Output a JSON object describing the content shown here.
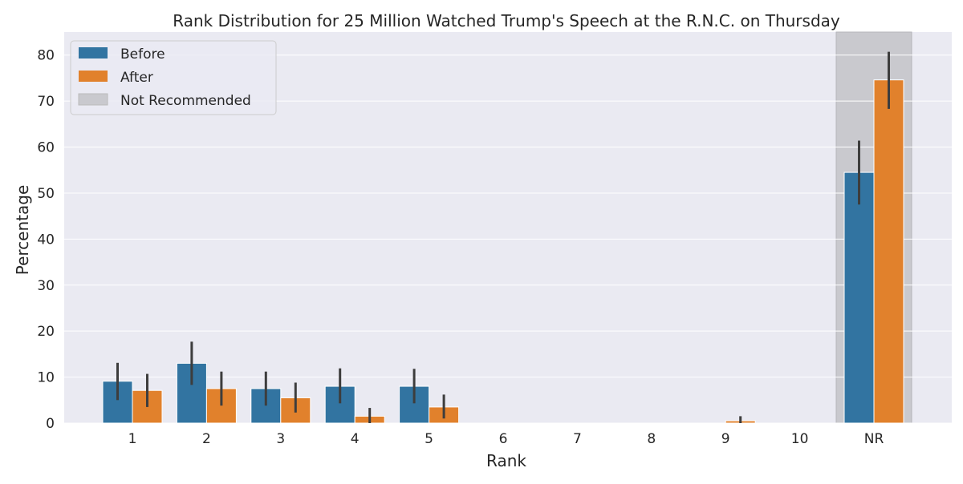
{
  "chart_data": {
    "type": "bar",
    "title": "Rank Distribution for 25 Million Watched Trump's Speech at the R.N.C. on Thursday",
    "xlabel": "Rank",
    "ylabel": "Percentage",
    "categories": [
      "1",
      "2",
      "3",
      "4",
      "5",
      "6",
      "7",
      "8",
      "9",
      "10",
      "NR"
    ],
    "ylim": [
      0,
      85
    ],
    "yticks": [
      0,
      10,
      20,
      30,
      40,
      50,
      60,
      70,
      80
    ],
    "grid": true,
    "legend_position": "top-left",
    "series": [
      {
        "name": "Before",
        "color": "#3274a1",
        "values": [
          9.1,
          13.0,
          7.5,
          8.0,
          8.0,
          0,
          0,
          0,
          0,
          0,
          54.5
        ],
        "error_low": [
          5.0,
          8.3,
          3.8,
          4.3,
          4.3,
          0,
          0,
          0,
          0,
          0,
          47.5
        ],
        "error_high": [
          13.1,
          17.7,
          11.2,
          11.9,
          11.8,
          0,
          0,
          0,
          0,
          0,
          61.4
        ]
      },
      {
        "name": "After",
        "color": "#e1812c",
        "values": [
          7.1,
          7.5,
          5.5,
          1.5,
          3.5,
          0,
          0,
          0,
          0.5,
          0,
          74.6
        ],
        "error_low": [
          3.5,
          3.8,
          2.3,
          0.0,
          1.0,
          0,
          0,
          0,
          0.0,
          0,
          68.3
        ],
        "error_high": [
          10.7,
          11.2,
          8.8,
          3.3,
          6.2,
          0,
          0,
          0,
          1.5,
          0,
          80.7
        ]
      }
    ],
    "highlight": {
      "label": "Not Recommended",
      "category": "NR",
      "color": "#c9c9ce"
    },
    "colors": {
      "plot_bg": "#eaeaf2",
      "grid": "#ffffff",
      "errorbar": "#3d3d3d"
    }
  }
}
